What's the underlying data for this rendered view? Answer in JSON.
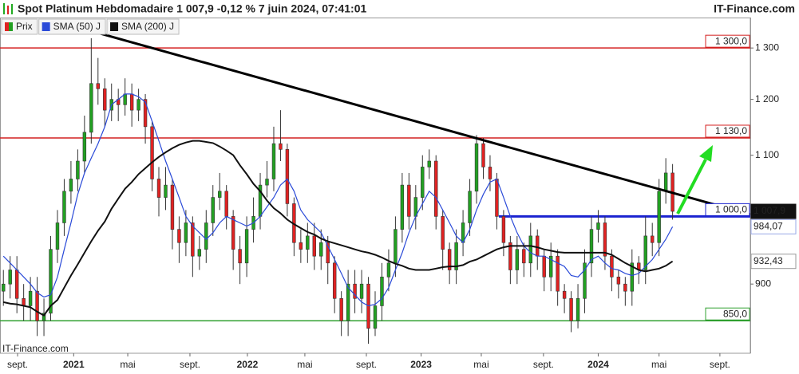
{
  "header": {
    "title": "Spot Platinum Hebdomadaire 1 007,9 -0,12 % 7 juin 2024, 07:41:01",
    "brand": "IT-Finance.com"
  },
  "chart_data": {
    "type": "candlestick",
    "log_scale": true,
    "xlim": [
      -0.5,
      110.5
    ],
    "ylim": [
      808,
      1353
    ],
    "xticks": [
      {
        "value": 2.1,
        "label": "sept."
      },
      {
        "value": 10.4,
        "label": "2021"
      },
      {
        "value": 18.4,
        "label": "mai"
      },
      {
        "value": 27.6,
        "label": "sept."
      },
      {
        "value": 36.1,
        "label": "2022"
      },
      {
        "value": 44.6,
        "label": "mai"
      },
      {
        "value": 53.7,
        "label": "sept."
      },
      {
        "value": 61.8,
        "label": "2023"
      },
      {
        "value": 70.7,
        "label": "mai"
      },
      {
        "value": 79.9,
        "label": "sept."
      },
      {
        "value": 88.0,
        "label": "2024"
      },
      {
        "value": 97.0,
        "label": "mai"
      },
      {
        "value": 106.0,
        "label": "sept."
      }
    ],
    "yticks": [
      {
        "value": 1300,
        "label": "1 300"
      },
      {
        "value": 1200,
        "label": "1 200"
      },
      {
        "value": 1100,
        "label": "1 100"
      },
      900
    ],
    "watermark": "IT-Finance.com",
    "series": [
      {
        "name": "Prix",
        "up_color": "#22a022",
        "down_color": "#e02222",
        "label": "1 007,9",
        "open": [
          890,
          900,
          920,
          880,
          870,
          890,
          850,
          860,
          950,
          990,
          1040,
          1060,
          1090,
          1140,
          1230,
          1220,
          1180,
          1200,
          1190,
          1210,
          1180,
          1200,
          1150,
          1060,
          1030,
          1050,
          980,
          960,
          990,
          940,
          950,
          990,
          1030,
          1040,
          1000,
          950,
          930,
          980,
          1000,
          1050,
          1060,
          1120,
          1110,
          1020,
          960,
          950,
          970,
          940,
          960,
          930,
          880,
          850,
          900,
          880,
          900,
          840,
          870,
          910,
          930,
          980,
          1050,
          1000,
          1030,
          1080,
          1090,
          1000,
          950,
          920,
          960,
          990,
          1040,
          1120,
          1080,
          1060,
          1000,
          960,
          920,
          950,
          930,
          970,
          940,
          910,
          940,
          890,
          880,
          850,
          880,
          930,
          980,
          990,
          940,
          910,
          900,
          890,
          930,
          920,
          970,
          960,
          1040,
          1070
        ],
        "high": [
          920,
          940,
          940,
          900,
          910,
          910,
          880,
          970,
          1010,
          1060,
          1090,
          1110,
          1170,
          1320,
          1280,
          1240,
          1230,
          1220,
          1240,
          1230,
          1220,
          1210,
          1160,
          1080,
          1080,
          1060,
          1000,
          1010,
          1000,
          970,
          1010,
          1050,
          1070,
          1050,
          1010,
          970,
          1000,
          1030,
          1070,
          1090,
          1150,
          1180,
          1120,
          1030,
          980,
          990,
          990,
          980,
          970,
          940,
          890,
          920,
          920,
          920,
          910,
          890,
          930,
          950,
          1000,
          1070,
          1070,
          1050,
          1100,
          1110,
          1100,
          1010,
          960,
          980,
          1010,
          1060,
          1135,
          1130,
          1100,
          1070,
          1010,
          970,
          970,
          960,
          990,
          980,
          950,
          960,
          950,
          900,
          890,
          900,
          950,
          1000,
          1010,
          1000,
          950,
          920,
          910,
          950,
          940,
          1000,
          990,
          1060,
          1095,
          1085
        ],
        "low": [
          870,
          880,
          860,
          850,
          850,
          830,
          830,
          850,
          930,
          970,
          1020,
          1040,
          1070,
          1120,
          1190,
          1150,
          1160,
          1160,
          1170,
          1150,
          1160,
          1120,
          1040,
          1000,
          1010,
          950,
          930,
          940,
          910,
          920,
          930,
          970,
          1010,
          980,
          920,
          900,
          910,
          960,
          980,
          1030,
          1040,
          1090,
          1000,
          940,
          930,
          930,
          920,
          920,
          900,
          860,
          830,
          830,
          860,
          860,
          820,
          830,
          850,
          890,
          910,
          960,
          980,
          980,
          1010,
          1060,
          980,
          920,
          900,
          900,
          940,
          970,
          1020,
          1060,
          1040,
          980,
          940,
          900,
          900,
          910,
          910,
          920,
          890,
          890,
          870,
          860,
          835,
          840,
          860,
          910,
          960,
          920,
          890,
          880,
          870,
          870,
          900,
          900,
          940,
          940,
          1020,
          995
        ],
        "close": [
          900,
          920,
          880,
          870,
          890,
          850,
          860,
          950,
          990,
          1040,
          1060,
          1090,
          1140,
          1230,
          1220,
          1180,
          1200,
          1190,
          1210,
          1180,
          1200,
          1150,
          1060,
          1030,
          1050,
          980,
          960,
          990,
          940,
          950,
          990,
          1030,
          1040,
          1000,
          950,
          930,
          980,
          1000,
          1050,
          1060,
          1120,
          1110,
          1020,
          960,
          950,
          970,
          940,
          960,
          930,
          880,
          850,
          900,
          880,
          900,
          840,
          870,
          910,
          930,
          980,
          1050,
          1000,
          1030,
          1080,
          1090,
          1000,
          950,
          920,
          960,
          990,
          1040,
          1120,
          1080,
          1060,
          1000,
          960,
          920,
          950,
          930,
          970,
          940,
          910,
          940,
          890,
          880,
          850,
          880,
          930,
          980,
          990,
          940,
          910,
          900,
          890,
          930,
          920,
          970,
          960,
          1040,
          1070,
          1007.9
        ]
      },
      {
        "name": "SMA (50) J",
        "color": "#2a4ad8",
        "label": "984,07",
        "values": [
          940,
          930,
          920,
          910,
          900,
          888,
          882,
          885,
          910,
          950,
          990,
          1035,
          1070,
          1095,
          1120,
          1150,
          1190,
          1200,
          1210,
          1210,
          1205,
          1195,
          1160,
          1125,
          1090,
          1060,
          1030,
          1000,
          985,
          975,
          965,
          975,
          990,
          1000,
          995,
          990,
          985,
          990,
          1000,
          1015,
          1030,
          1050,
          1060,
          1040,
          1010,
          995,
          985,
          975,
          955,
          935,
          915,
          895,
          885,
          875,
          870,
          872,
          880,
          895,
          920,
          945,
          975,
          1000,
          1020,
          1040,
          1030,
          1010,
          990,
          970,
          960,
          980,
          1010,
          1035,
          1055,
          1060,
          1030,
          1000,
          975,
          955,
          945,
          940,
          940,
          935,
          930,
          925,
          912,
          910,
          920,
          935,
          940,
          930,
          922,
          920,
          915,
          912,
          915,
          925,
          935,
          950,
          965,
          984.07
        ]
      },
      {
        "name": "SMA (200) J",
        "color": "#111111",
        "label": "932,43",
        "values": [
          875,
          873,
          872,
          870,
          868,
          862,
          857,
          870,
          878,
          895,
          912,
          928,
          945,
          962,
          978,
          992,
          1012,
          1028,
          1044,
          1055,
          1068,
          1078,
          1088,
          1097,
          1105,
          1112,
          1118,
          1122,
          1125,
          1125,
          1123,
          1121,
          1115,
          1108,
          1100,
          1083,
          1068,
          1052,
          1040,
          1025,
          1013,
          1005,
          995,
          988,
          982,
          976,
          972,
          966,
          962,
          959,
          956,
          953,
          950,
          947,
          945,
          942,
          938,
          933,
          929,
          926,
          922,
          920,
          920,
          920,
          922,
          924,
          925,
          925,
          927,
          932,
          935,
          940,
          945,
          950,
          953,
          955,
          955,
          955,
          955,
          953,
          950,
          948,
          946,
          945,
          945,
          945,
          945,
          945,
          945,
          945,
          942,
          936,
          930,
          925,
          920,
          918,
          920,
          922,
          926,
          932.43
        ]
      }
    ],
    "levels": [
      {
        "value": 1300,
        "label": "1 300,0",
        "color": "#d42020",
        "from": -0.5
      },
      {
        "value": 1130,
        "label": "1 130,0",
        "color": "#d42020",
        "from": -0.5
      },
      {
        "value": 1000,
        "label": "1 000,0",
        "color": "#1a22d0",
        "from": 73.3
      },
      {
        "value": 850,
        "label": "850,0",
        "color": "#30a030",
        "from": -0.5
      }
    ],
    "trendline": {
      "x": [
        13.7,
        110.5
      ],
      "values": [
        1332,
        1003
      ],
      "color": "#000000"
    }
  }
}
